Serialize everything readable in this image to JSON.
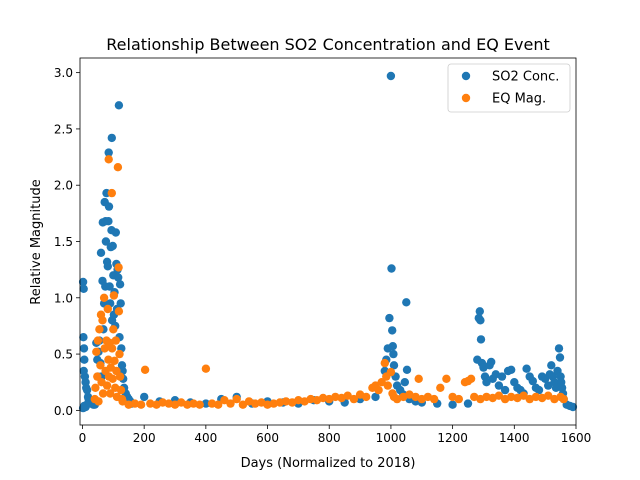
{
  "chart_data": {
    "type": "scatter",
    "title": "Relationship Between SO2 Concentration and EQ Event",
    "xlabel": "Days (Normalized to 2018)",
    "ylabel": "Relative Magnitude",
    "xlim": [
      -8,
      1600
    ],
    "ylim": [
      -0.13,
      3.13
    ],
    "xticks": [
      0,
      200,
      400,
      600,
      800,
      1000,
      1200,
      1400,
      1600
    ],
    "xtick_labels": [
      "0",
      "200",
      "400",
      "600",
      "800",
      "1000",
      "1200",
      "1400",
      "1600"
    ],
    "yticks": [
      0.0,
      0.5,
      1.0,
      1.5,
      2.0,
      2.5,
      3.0
    ],
    "ytick_labels": [
      "0.0",
      "0.5",
      "1.0",
      "1.5",
      "2.0",
      "2.5",
      "3.0"
    ],
    "grid": false,
    "legend_position": "top-right",
    "series": [
      {
        "name": "SO2 Conc.",
        "color": "#1f77b4",
        "points": [
          [
            2,
            1.14
          ],
          [
            4,
            1.08
          ],
          [
            3,
            0.65
          ],
          [
            5,
            0.55
          ],
          [
            6,
            0.45
          ],
          [
            4,
            0.35
          ],
          [
            8,
            0.3
          ],
          [
            10,
            0.25
          ],
          [
            12,
            0.2
          ],
          [
            15,
            0.18
          ],
          [
            18,
            0.12
          ],
          [
            20,
            0.1
          ],
          [
            25,
            0.08
          ],
          [
            30,
            0.06
          ],
          [
            35,
            0.05
          ],
          [
            40,
            0.05
          ],
          [
            2,
            0.02
          ],
          [
            6,
            0.04
          ],
          [
            10,
            0.03
          ],
          [
            14,
            0.05
          ],
          [
            45,
            0.6
          ],
          [
            48,
            0.45
          ],
          [
            50,
            0.3
          ],
          [
            52,
            0.52
          ],
          [
            55,
            0.62
          ],
          [
            58,
            0.42
          ],
          [
            60,
            1.4
          ],
          [
            62,
            0.3
          ],
          [
            65,
            1.15
          ],
          [
            66,
            1.67
          ],
          [
            68,
            0.72
          ],
          [
            70,
            0.95
          ],
          [
            72,
            1.85
          ],
          [
            74,
            1.1
          ],
          [
            75,
            1.68
          ],
          [
            76,
            1.5
          ],
          [
            78,
            1.93
          ],
          [
            80,
            1.32
          ],
          [
            82,
            1.28
          ],
          [
            84,
            1.68
          ],
          [
            85,
            2.29
          ],
          [
            86,
            1.81
          ],
          [
            88,
            1.1
          ],
          [
            90,
            0.95
          ],
          [
            92,
            1.45
          ],
          [
            94,
            1.6
          ],
          [
            95,
            2.42
          ],
          [
            96,
            0.8
          ],
          [
            98,
            1.46
          ],
          [
            100,
            1.2
          ],
          [
            102,
            0.85
          ],
          [
            104,
            1.05
          ],
          [
            106,
            0.75
          ],
          [
            108,
            1.58
          ],
          [
            110,
            1.3
          ],
          [
            112,
            0.9
          ],
          [
            114,
            1.25
          ],
          [
            116,
            1.18
          ],
          [
            118,
            2.71
          ],
          [
            120,
            0.65
          ],
          [
            122,
            1.12
          ],
          [
            124,
            0.95
          ],
          [
            126,
            0.55
          ],
          [
            128,
            0.4
          ],
          [
            130,
            0.35
          ],
          [
            132,
            0.28
          ],
          [
            135,
            0.2
          ],
          [
            140,
            0.15
          ],
          [
            145,
            0.12
          ],
          [
            150,
            0.1
          ],
          [
            155,
            0.08
          ],
          [
            160,
            0.06
          ],
          [
            200,
            0.12
          ],
          [
            250,
            0.08
          ],
          [
            300,
            0.09
          ],
          [
            350,
            0.07
          ],
          [
            400,
            0.06
          ],
          [
            450,
            0.1
          ],
          [
            500,
            0.12
          ],
          [
            550,
            0.06
          ],
          [
            600,
            0.08
          ],
          [
            650,
            0.07
          ],
          [
            700,
            0.06
          ],
          [
            750,
            0.09
          ],
          [
            800,
            0.08
          ],
          [
            850,
            0.07
          ],
          [
            900,
            0.1
          ],
          [
            950,
            0.12
          ],
          [
            980,
            0.35
          ],
          [
            985,
            0.45
          ],
          [
            990,
            0.55
          ],
          [
            995,
            0.82
          ],
          [
            1000,
            2.97
          ],
          [
            1002,
            1.26
          ],
          [
            1004,
            0.71
          ],
          [
            1006,
            0.57
          ],
          [
            1008,
            0.5
          ],
          [
            1010,
            0.4
          ],
          [
            1015,
            0.3
          ],
          [
            1020,
            0.22
          ],
          [
            1030,
            0.18
          ],
          [
            1040,
            0.14
          ],
          [
            1045,
            0.25
          ],
          [
            1050,
            0.96
          ],
          [
            1052,
            0.36
          ],
          [
            1055,
            0.12
          ],
          [
            1060,
            0.1
          ],
          [
            1080,
            0.08
          ],
          [
            1100,
            0.07
          ],
          [
            1150,
            0.06
          ],
          [
            1200,
            0.05
          ],
          [
            1250,
            0.06
          ],
          [
            1280,
            0.45
          ],
          [
            1285,
            0.82
          ],
          [
            1288,
            0.88
          ],
          [
            1290,
            0.8
          ],
          [
            1292,
            0.63
          ],
          [
            1295,
            0.42
          ],
          [
            1300,
            0.38
          ],
          [
            1305,
            0.3
          ],
          [
            1310,
            0.25
          ],
          [
            1320,
            0.4
          ],
          [
            1325,
            0.43
          ],
          [
            1330,
            0.28
          ],
          [
            1340,
            0.32
          ],
          [
            1350,
            0.22
          ],
          [
            1360,
            0.3
          ],
          [
            1370,
            0.18
          ],
          [
            1380,
            0.35
          ],
          [
            1390,
            0.36
          ],
          [
            1400,
            0.25
          ],
          [
            1410,
            0.2
          ],
          [
            1420,
            0.18
          ],
          [
            1430,
            0.15
          ],
          [
            1440,
            0.37
          ],
          [
            1450,
            0.3
          ],
          [
            1460,
            0.26
          ],
          [
            1470,
            0.2
          ],
          [
            1480,
            0.18
          ],
          [
            1490,
            0.3
          ],
          [
            1500,
            0.28
          ],
          [
            1510,
            0.22
          ],
          [
            1515,
            0.32
          ],
          [
            1520,
            0.4
          ],
          [
            1525,
            0.3
          ],
          [
            1530,
            0.25
          ],
          [
            1535,
            0.2
          ],
          [
            1540,
            0.35
          ],
          [
            1545,
            0.55
          ],
          [
            1548,
            0.47
          ],
          [
            1550,
            0.3
          ],
          [
            1552,
            0.25
          ],
          [
            1555,
            0.2
          ],
          [
            1558,
            0.15
          ],
          [
            1560,
            0.1
          ],
          [
            1570,
            0.05
          ],
          [
            1580,
            0.04
          ],
          [
            1590,
            0.03
          ]
        ]
      },
      {
        "name": "EQ Mag.",
        "color": "#ff7f0e",
        "points": [
          [
            40,
            0.1
          ],
          [
            42,
            0.2
          ],
          [
            45,
            0.52
          ],
          [
            48,
            0.3
          ],
          [
            50,
            0.62
          ],
          [
            52,
            0.08
          ],
          [
            55,
            0.72
          ],
          [
            58,
            0.4
          ],
          [
            60,
            0.85
          ],
          [
            62,
            0.25
          ],
          [
            65,
            0.8
          ],
          [
            67,
            0.15
          ],
          [
            70,
            1.0
          ],
          [
            72,
            0.55
          ],
          [
            75,
            0.35
          ],
          [
            78,
            0.62
          ],
          [
            80,
            0.22
          ],
          [
            82,
            0.9
          ],
          [
            84,
            0.45
          ],
          [
            85,
            2.23
          ],
          [
            86,
            0.3
          ],
          [
            88,
            0.6
          ],
          [
            90,
            0.15
          ],
          [
            92,
            0.38
          ],
          [
            95,
            1.93
          ],
          [
            96,
            0.55
          ],
          [
            98,
            0.28
          ],
          [
            100,
            0.72
          ],
          [
            102,
            1.02
          ],
          [
            104,
            0.44
          ],
          [
            106,
            0.2
          ],
          [
            108,
            0.62
          ],
          [
            110,
            0.35
          ],
          [
            112,
            0.12
          ],
          [
            115,
            2.16
          ],
          [
            117,
            1.27
          ],
          [
            118,
            0.88
          ],
          [
            120,
            0.5
          ],
          [
            122,
            0.3
          ],
          [
            125,
            0.18
          ],
          [
            128,
            0.1
          ],
          [
            130,
            0.08
          ],
          [
            150,
            0.05
          ],
          [
            170,
            0.06
          ],
          [
            190,
            0.05
          ],
          [
            203,
            0.36
          ],
          [
            220,
            0.06
          ],
          [
            240,
            0.05
          ],
          [
            260,
            0.07
          ],
          [
            280,
            0.06
          ],
          [
            300,
            0.05
          ],
          [
            320,
            0.07
          ],
          [
            340,
            0.05
          ],
          [
            360,
            0.06
          ],
          [
            380,
            0.05
          ],
          [
            400,
            0.37
          ],
          [
            420,
            0.06
          ],
          [
            440,
            0.05
          ],
          [
            460,
            0.09
          ],
          [
            480,
            0.06
          ],
          [
            500,
            0.1
          ],
          [
            520,
            0.05
          ],
          [
            540,
            0.08
          ],
          [
            560,
            0.06
          ],
          [
            580,
            0.07
          ],
          [
            600,
            0.05
          ],
          [
            620,
            0.06
          ],
          [
            640,
            0.07
          ],
          [
            660,
            0.08
          ],
          [
            680,
            0.07
          ],
          [
            700,
            0.09
          ],
          [
            720,
            0.08
          ],
          [
            740,
            0.1
          ],
          [
            760,
            0.09
          ],
          [
            780,
            0.11
          ],
          [
            800,
            0.1
          ],
          [
            820,
            0.12
          ],
          [
            840,
            0.11
          ],
          [
            860,
            0.13
          ],
          [
            880,
            0.1
          ],
          [
            900,
            0.14
          ],
          [
            920,
            0.12
          ],
          [
            940,
            0.2
          ],
          [
            950,
            0.22
          ],
          [
            960,
            0.18
          ],
          [
            970,
            0.25
          ],
          [
            980,
            0.42
          ],
          [
            985,
            0.3
          ],
          [
            990,
            0.22
          ],
          [
            1000,
            0.34
          ],
          [
            1005,
            0.15
          ],
          [
            1010,
            0.12
          ],
          [
            1020,
            0.1
          ],
          [
            1040,
            0.12
          ],
          [
            1060,
            0.14
          ],
          [
            1080,
            0.12
          ],
          [
            1090,
            0.28
          ],
          [
            1100,
            0.1
          ],
          [
            1120,
            0.12
          ],
          [
            1140,
            0.1
          ],
          [
            1160,
            0.2
          ],
          [
            1180,
            0.28
          ],
          [
            1200,
            0.12
          ],
          [
            1220,
            0.1
          ],
          [
            1240,
            0.25
          ],
          [
            1250,
            0.26
          ],
          [
            1260,
            0.28
          ],
          [
            1270,
            0.12
          ],
          [
            1290,
            0.1
          ],
          [
            1310,
            0.12
          ],
          [
            1330,
            0.11
          ],
          [
            1350,
            0.13
          ],
          [
            1370,
            0.1
          ],
          [
            1390,
            0.12
          ],
          [
            1410,
            0.11
          ],
          [
            1430,
            0.13
          ],
          [
            1450,
            0.1
          ],
          [
            1470,
            0.12
          ],
          [
            1490,
            0.11
          ],
          [
            1510,
            0.13
          ],
          [
            1530,
            0.1
          ],
          [
            1550,
            0.12
          ],
          [
            1560,
            0.1
          ]
        ]
      }
    ]
  }
}
